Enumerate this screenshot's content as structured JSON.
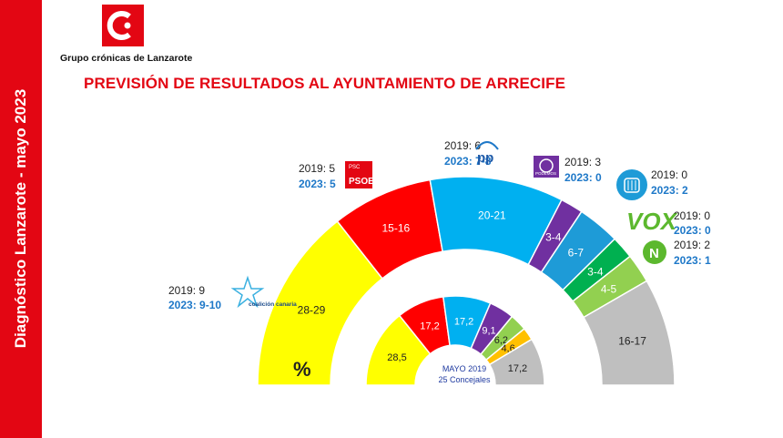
{
  "header": {
    "sidebar_text": "Diagnóstico Lanzarote - mayo 2023",
    "logo_name": "Grupo crónicas de Lanzarote",
    "title": "PREVISIÓN DE RESULTADOS AL AYUNTAMIENTO DE ARRECIFE"
  },
  "chart_data": [
    {
      "type": "semicircle-donut",
      "title": "PREVISIÓN DE RESULTADOS AL AYUNTAMIENTO DE ARRECIFE",
      "unit": "%",
      "series": [
        {
          "party": "CC",
          "label": "28-29",
          "value": 28.5,
          "color": "#ffff00",
          "text_color": "#222222",
          "seats_2019": "2019: 9",
          "seats_2023": "2023: 9-10",
          "logo_text": "coalición canaria"
        },
        {
          "party": "PSOE",
          "label": "15-16",
          "value": 15.5,
          "color": "#ff0000",
          "text_color": "#ffffff",
          "seats_2019": "2019: 5",
          "seats_2023": "2023: 5",
          "logo_text": "PSOE",
          "logo_small": "PSC"
        },
        {
          "party": "PP",
          "label": "20-21",
          "value": 20.5,
          "color": "#00b0f0",
          "text_color": "#ffffff",
          "seats_2019": "2019: 6",
          "seats_2023": "2023: 7-8",
          "logo_text": "pp"
        },
        {
          "party": "Podemos",
          "label": "3-4",
          "value": 3.5,
          "color": "#7030a0",
          "text_color": "#ffffff",
          "seats_2019": "2019: 3",
          "seats_2023": "2023: 0",
          "logo_text": "PODEMOS"
        },
        {
          "party": "Lanzarote en Pie",
          "label": "6-7",
          "value": 6.5,
          "color": "#1e9bd7",
          "text_color": "#ffffff",
          "seats_2019": "2019: 0",
          "seats_2023": "2023: 2"
        },
        {
          "party": "VOX",
          "label": "3-4",
          "value": 3.5,
          "color": "#00b050",
          "text_color": "#ffffff",
          "seats_2019": "2019: 0",
          "seats_2023": "2023: 0",
          "logo_text": "VOX"
        },
        {
          "party": "NC",
          "label": "4-5",
          "value": 4.5,
          "color": "#92d050",
          "text_color": "#ffffff",
          "seats_2019": "2019: 2",
          "seats_2023": "2023: 1"
        },
        {
          "party": "Otros",
          "label": "16-17",
          "value": 16.5,
          "color": "#bfbfbf",
          "text_color": "#222222"
        }
      ]
    },
    {
      "type": "semicircle-donut",
      "title": "MAYO 2019",
      "subtitle": "25 Concejales",
      "series": [
        {
          "party": "CC",
          "label": "28,5",
          "value": 28.5,
          "color": "#ffff00",
          "text_color": "#222222"
        },
        {
          "party": "PSOE",
          "label": "17,2",
          "value": 17.2,
          "color": "#ff0000",
          "text_color": "#ffffff"
        },
        {
          "party": "PP",
          "label": "17,2",
          "value": 17.2,
          "color": "#00b0f0",
          "text_color": "#ffffff"
        },
        {
          "party": "Podemos",
          "label": "9,1",
          "value": 9.1,
          "color": "#7030a0",
          "text_color": "#ffffff"
        },
        {
          "party": "NC",
          "label": "6,2",
          "value": 6.2,
          "color": "#92d050",
          "text_color": "#222222"
        },
        {
          "party": "Otro",
          "label": "4,6",
          "value": 4.6,
          "color": "#ffc000",
          "text_color": "#222222"
        },
        {
          "party": "Otros",
          "label": "17,2",
          "value": 17.2,
          "color": "#bfbfbf",
          "text_color": "#222222"
        }
      ]
    }
  ]
}
